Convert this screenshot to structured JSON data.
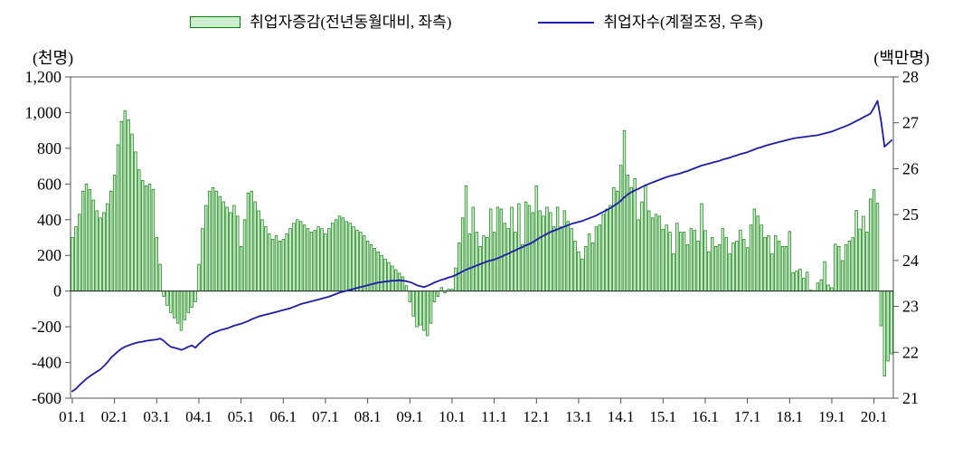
{
  "chart_data": {
    "type": "bar",
    "title": "",
    "x_tick_labels": [
      "01.1",
      "02.1",
      "03.1",
      "04.1",
      "05.1",
      "06.1",
      "07.1",
      "08.1",
      "09.1",
      "10.1",
      "11.1",
      "12.1",
      "13.1",
      "14.1",
      "15.1",
      "16.1",
      "17.1",
      "18.1",
      "19.1",
      "20.1"
    ],
    "left_axis": {
      "unit": "(천명)",
      "min": -600,
      "max": 1200,
      "step": 200,
      "tick_labels": [
        "1,200",
        "1,000",
        "800",
        "600",
        "400",
        "200",
        "0",
        "-200",
        "-400",
        "-600"
      ]
    },
    "right_axis": {
      "unit": "(백만명)",
      "min": 21,
      "max": 28,
      "step": 1,
      "tick_labels": [
        "28",
        "27",
        "26",
        "25",
        "24",
        "23",
        "22",
        "21"
      ]
    },
    "series_bar": {
      "name": "취업자증감(전년동월대비, 좌측)",
      "axis": "left",
      "fill": "#cdeecd",
      "stroke": "#0a7a0a",
      "values": [
        300,
        360,
        430,
        560,
        600,
        570,
        510,
        450,
        410,
        440,
        490,
        560,
        650,
        820,
        950,
        1010,
        960,
        880,
        780,
        680,
        620,
        590,
        600,
        570,
        300,
        150,
        -30,
        -80,
        -120,
        -150,
        -180,
        -220,
        -160,
        -120,
        -90,
        -60,
        150,
        350,
        480,
        560,
        580,
        560,
        530,
        500,
        470,
        440,
        480,
        420,
        250,
        400,
        550,
        560,
        500,
        450,
        400,
        360,
        320,
        290,
        310,
        280,
        290,
        320,
        350,
        380,
        400,
        390,
        370,
        350,
        330,
        340,
        360,
        350,
        320,
        350,
        380,
        400,
        420,
        410,
        390,
        380,
        360,
        340,
        330,
        310,
        280,
        260,
        240,
        220,
        200,
        180,
        160,
        140,
        120,
        100,
        80,
        30,
        -60,
        -140,
        -200,
        -190,
        -220,
        -250,
        -180,
        -60,
        -30,
        20,
        -10,
        10,
        10,
        130,
        270,
        410,
        590,
        320,
        470,
        330,
        250,
        310,
        300,
        460,
        330,
        470,
        460,
        380,
        350,
        470,
        330,
        490,
        260,
        500,
        480,
        440,
        590,
        450,
        420,
        470,
        440,
        360,
        470,
        360,
        450,
        390,
        350,
        280,
        220,
        180,
        250,
        320,
        270,
        360,
        370,
        430,
        460,
        480,
        580,
        560,
        705,
        900,
        650,
        580,
        630,
        400,
        500,
        590,
        450,
        410,
        430,
        420,
        347,
        370,
        330,
        210,
        380,
        330,
        330,
        260,
        350,
        340,
        280,
        490,
        339,
        220,
        300,
        250,
        260,
        350,
        300,
        210,
        270,
        280,
        340,
        290,
        243,
        370,
        460,
        420,
        370,
        300,
        310,
        210,
        310,
        280,
        250,
        250,
        334,
        104,
        112,
        123,
        72,
        106,
        5,
        3,
        45,
        64,
        165,
        34,
        19,
        263,
        250,
        171,
        259,
        281,
        299,
        452,
        348,
        419,
        331,
        516,
        568,
        492,
        -195,
        -476,
        -392,
        -352
      ]
    },
    "series_line": {
      "name": "취업자수(계절조정, 우측)",
      "axis": "right",
      "color": "#1c1ca8",
      "values": [
        21.15,
        21.2,
        21.28,
        21.35,
        21.42,
        21.48,
        21.53,
        21.58,
        21.63,
        21.7,
        21.78,
        21.88,
        21.95,
        22.02,
        22.08,
        22.12,
        22.15,
        22.18,
        22.2,
        22.22,
        22.23,
        22.25,
        22.26,
        22.27,
        22.28,
        22.3,
        22.25,
        22.18,
        22.12,
        22.1,
        22.08,
        22.05,
        22.08,
        22.12,
        22.15,
        22.1,
        22.18,
        22.25,
        22.32,
        22.38,
        22.42,
        22.45,
        22.48,
        22.5,
        22.52,
        22.55,
        22.58,
        22.6,
        22.62,
        22.65,
        22.68,
        22.72,
        22.75,
        22.78,
        22.8,
        22.82,
        22.84,
        22.86,
        22.88,
        22.9,
        22.92,
        22.94,
        22.96,
        22.99,
        23.02,
        23.05,
        23.07,
        23.09,
        23.11,
        23.13,
        23.15,
        23.17,
        23.19,
        23.21,
        23.24,
        23.27,
        23.3,
        23.32,
        23.34,
        23.36,
        23.38,
        23.4,
        23.42,
        23.44,
        23.46,
        23.48,
        23.5,
        23.52,
        23.53,
        23.54,
        23.55,
        23.56,
        23.56,
        23.57,
        23.56,
        23.55,
        23.53,
        23.5,
        23.46,
        23.44,
        23.42,
        23.45,
        23.48,
        23.52,
        23.55,
        23.58,
        23.6,
        23.63,
        23.65,
        23.68,
        23.72,
        23.76,
        23.8,
        23.83,
        23.86,
        23.89,
        23.92,
        23.95,
        23.98,
        24.0,
        24.02,
        24.05,
        24.08,
        24.12,
        24.15,
        24.19,
        24.22,
        24.26,
        24.29,
        24.33,
        24.36,
        24.4,
        24.45,
        24.5,
        24.54,
        24.58,
        24.62,
        24.65,
        24.68,
        24.71,
        24.74,
        24.77,
        24.8,
        24.82,
        24.84,
        24.86,
        24.89,
        24.92,
        24.95,
        24.98,
        25.02,
        25.06,
        25.1,
        25.14,
        25.19,
        25.24,
        25.3,
        25.38,
        25.44,
        25.49,
        25.53,
        25.56,
        25.6,
        25.64,
        25.67,
        25.7,
        25.73,
        25.76,
        25.79,
        25.82,
        25.84,
        25.86,
        25.88,
        25.9,
        25.93,
        25.95,
        25.98,
        26.01,
        26.04,
        26.07,
        26.09,
        26.11,
        26.13,
        26.15,
        26.17,
        26.2,
        26.22,
        26.24,
        26.27,
        26.29,
        26.32,
        26.34,
        26.36,
        26.39,
        26.42,
        26.45,
        26.47,
        26.5,
        26.52,
        26.54,
        26.56,
        26.58,
        26.6,
        26.62,
        26.64,
        26.66,
        26.67,
        26.68,
        26.69,
        26.7,
        26.71,
        26.72,
        26.73,
        26.75,
        26.77,
        26.79,
        26.81,
        26.84,
        26.87,
        26.9,
        26.93,
        26.96,
        27.0,
        27.04,
        27.08,
        27.12,
        27.16,
        27.2,
        27.33,
        27.48,
        27.05,
        26.48,
        26.55,
        26.62
      ]
    }
  }
}
